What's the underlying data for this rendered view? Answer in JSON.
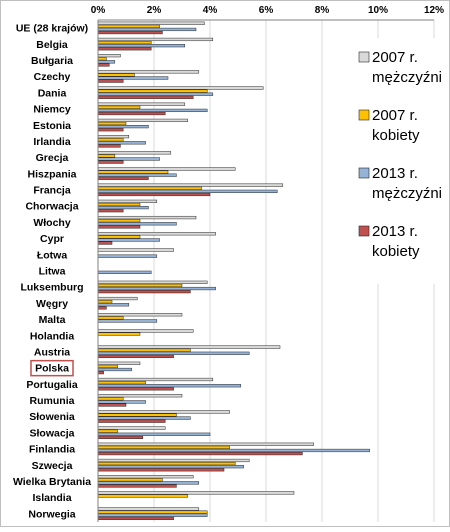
{
  "chart_data": {
    "type": "bar",
    "orientation": "horizontal",
    "title": "",
    "xlabel": "",
    "ylabel": "",
    "xlim": [
      0,
      12
    ],
    "x_ticks": [
      "0%",
      "2%",
      "4%",
      "6%",
      "8%",
      "10%",
      "12%"
    ],
    "grid": true,
    "legend_position": "right",
    "highlighted_category": "Polska",
    "categories": [
      "UE (28 krajów)",
      "Belgia",
      "Bułgaria",
      "Czechy",
      "Dania",
      "Niemcy",
      "Estonia",
      "Irlandia",
      "Grecja",
      "Hiszpania",
      "Francja",
      "Chorwacja",
      "Włochy",
      "Cypr",
      "Łotwa",
      "Litwa",
      "Luksemburg",
      "Węgry",
      "Malta",
      "Holandia",
      "Austria",
      "Polska",
      "Portugalia",
      "Rumunia",
      "Słowenia",
      "Słowacja",
      "Finlandia",
      "Szwecja",
      "Wielka Brytania",
      "Islandia",
      "Norwegia"
    ],
    "series": [
      {
        "name": "2007 r. mężczyźni",
        "color": "#d9d9d9",
        "values": [
          3.8,
          4.1,
          0.8,
          3.6,
          5.9,
          3.1,
          3.2,
          1.1,
          2.6,
          4.9,
          6.6,
          2.1,
          3.5,
          4.2,
          2.7,
          0,
          3.9,
          1.4,
          3.0,
          3.4,
          6.5,
          1.5,
          4.1,
          3.0,
          4.7,
          2.4,
          7.7,
          5.4,
          3.4,
          7.0,
          3.6
        ]
      },
      {
        "name": "2007 r. kobiety",
        "color": "#ffc000",
        "values": [
          2.2,
          1.9,
          0.3,
          1.3,
          3.9,
          1.5,
          1.0,
          0.9,
          0.6,
          2.5,
          3.7,
          1.5,
          1.5,
          1.5,
          0,
          0,
          3.0,
          0.5,
          0.9,
          1.5,
          3.3,
          0.7,
          1.7,
          0.9,
          2.8,
          0.7,
          4.7,
          4.9,
          2.3,
          3.2,
          3.9
        ]
      },
      {
        "name": "2013 r. mężczyźni",
        "color": "#95b3d7",
        "values": [
          3.5,
          3.1,
          0.6,
          2.5,
          4.1,
          3.9,
          1.8,
          1.7,
          2.2,
          2.8,
          6.4,
          1.8,
          2.8,
          2.2,
          2.1,
          1.9,
          4.2,
          1.1,
          2.1,
          0,
          5.4,
          1.2,
          5.1,
          1.7,
          3.3,
          4.0,
          9.7,
          5.2,
          3.6,
          0,
          3.9
        ]
      },
      {
        "name": "2013 r. kobiety",
        "color": "#c0504d",
        "values": [
          2.3,
          1.9,
          0.4,
          0.9,
          3.4,
          2.4,
          0.9,
          0.8,
          0.9,
          1.8,
          4.0,
          0.9,
          1.5,
          0.5,
          0,
          0,
          3.3,
          0.3,
          0,
          0,
          2.7,
          0.2,
          2.7,
          1.0,
          2.4,
          1.6,
          7.3,
          4.5,
          2.8,
          0,
          2.7
        ]
      }
    ]
  }
}
